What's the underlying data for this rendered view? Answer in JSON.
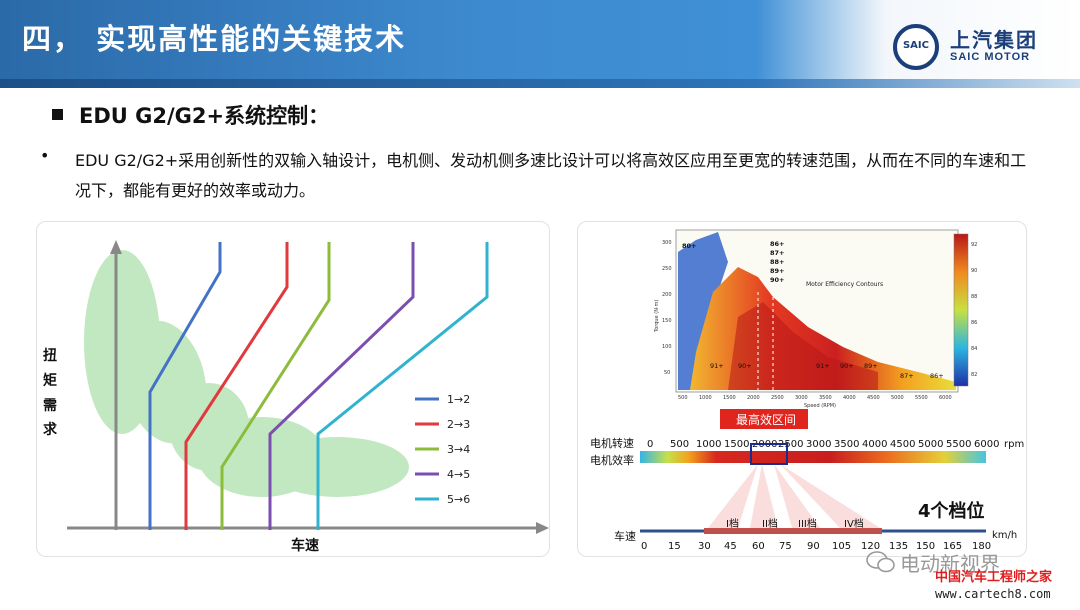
{
  "header": {
    "title": "四， 实现高性能的关键技术",
    "logo_cn": "上汽集团",
    "logo_en": "SAIC MOTOR",
    "logo_mark": "SAIC"
  },
  "section": {
    "heading": "EDU G2/G2+系统控制：",
    "bullet": "•",
    "paragraph": "EDU G2/G2+采用创新性的双输入轴设计，电机侧、发动机侧多速比设计可以将高效区应用至更宽的转速范围，从而在不同的车速和工况下，都能有更好的效率或动力。"
  },
  "shift_diagram": {
    "y_label": [
      "扭",
      "矩",
      "需",
      "求"
    ],
    "x_label": "车速",
    "legend": [
      {
        "label": "1→2",
        "color": "#4472c4"
      },
      {
        "label": "2→3",
        "color": "#e0393e"
      },
      {
        "label": "3→4",
        "color": "#8dbb3c"
      },
      {
        "label": "4→5",
        "color": "#7b4fb0"
      },
      {
        "label": "5→6",
        "color": "#2fb3cf"
      }
    ]
  },
  "efficiency_map": {
    "title": "Motor Efficiency Contours",
    "x_axis": "Speed (RPM)",
    "y_axis": "Torque (N·m)",
    "x_ticks": [
      "500",
      "1000",
      "1500",
      "2000",
      "2500",
      "3000",
      "3500",
      "4000",
      "4500",
      "5000",
      "5500",
      "6000"
    ],
    "y_ticks": [
      "50",
      "100",
      "150",
      "200",
      "250",
      "300"
    ],
    "contour_labels": [
      "80+",
      "86+",
      "87+",
      "88+",
      "89+",
      "90+",
      "91+",
      "90+",
      "91+",
      "90+",
      "89+",
      "87+",
      "86+"
    ],
    "colorbar_ticks": [
      "92",
      "90",
      "88",
      "86",
      "84",
      "82"
    ],
    "high_eff_label": "最高效区间",
    "motor_speed_label": "电机转速",
    "motor_eff_label": "电机效率",
    "rpm_ticks": [
      "0",
      "500",
      "1000",
      "1500",
      "2000",
      "2500",
      "3000",
      "3500",
      "4000",
      "4500",
      "5000",
      "5500",
      "6000"
    ],
    "rpm_unit": "rpm",
    "gear_count_label": "4个档位",
    "gears": [
      "I档",
      "II档",
      "III档",
      "IV档"
    ],
    "vehicle_speed_label": "车速",
    "speed_ticks": [
      "0",
      "15",
      "30",
      "45",
      "60",
      "75",
      "90",
      "105",
      "120",
      "135",
      "150",
      "165",
      "180"
    ],
    "speed_unit": "km/h"
  },
  "watermark": {
    "wechat": "电动新视界",
    "site_cn": "中国汽车工程师之家",
    "site_url": "www.cartech8.com"
  }
}
